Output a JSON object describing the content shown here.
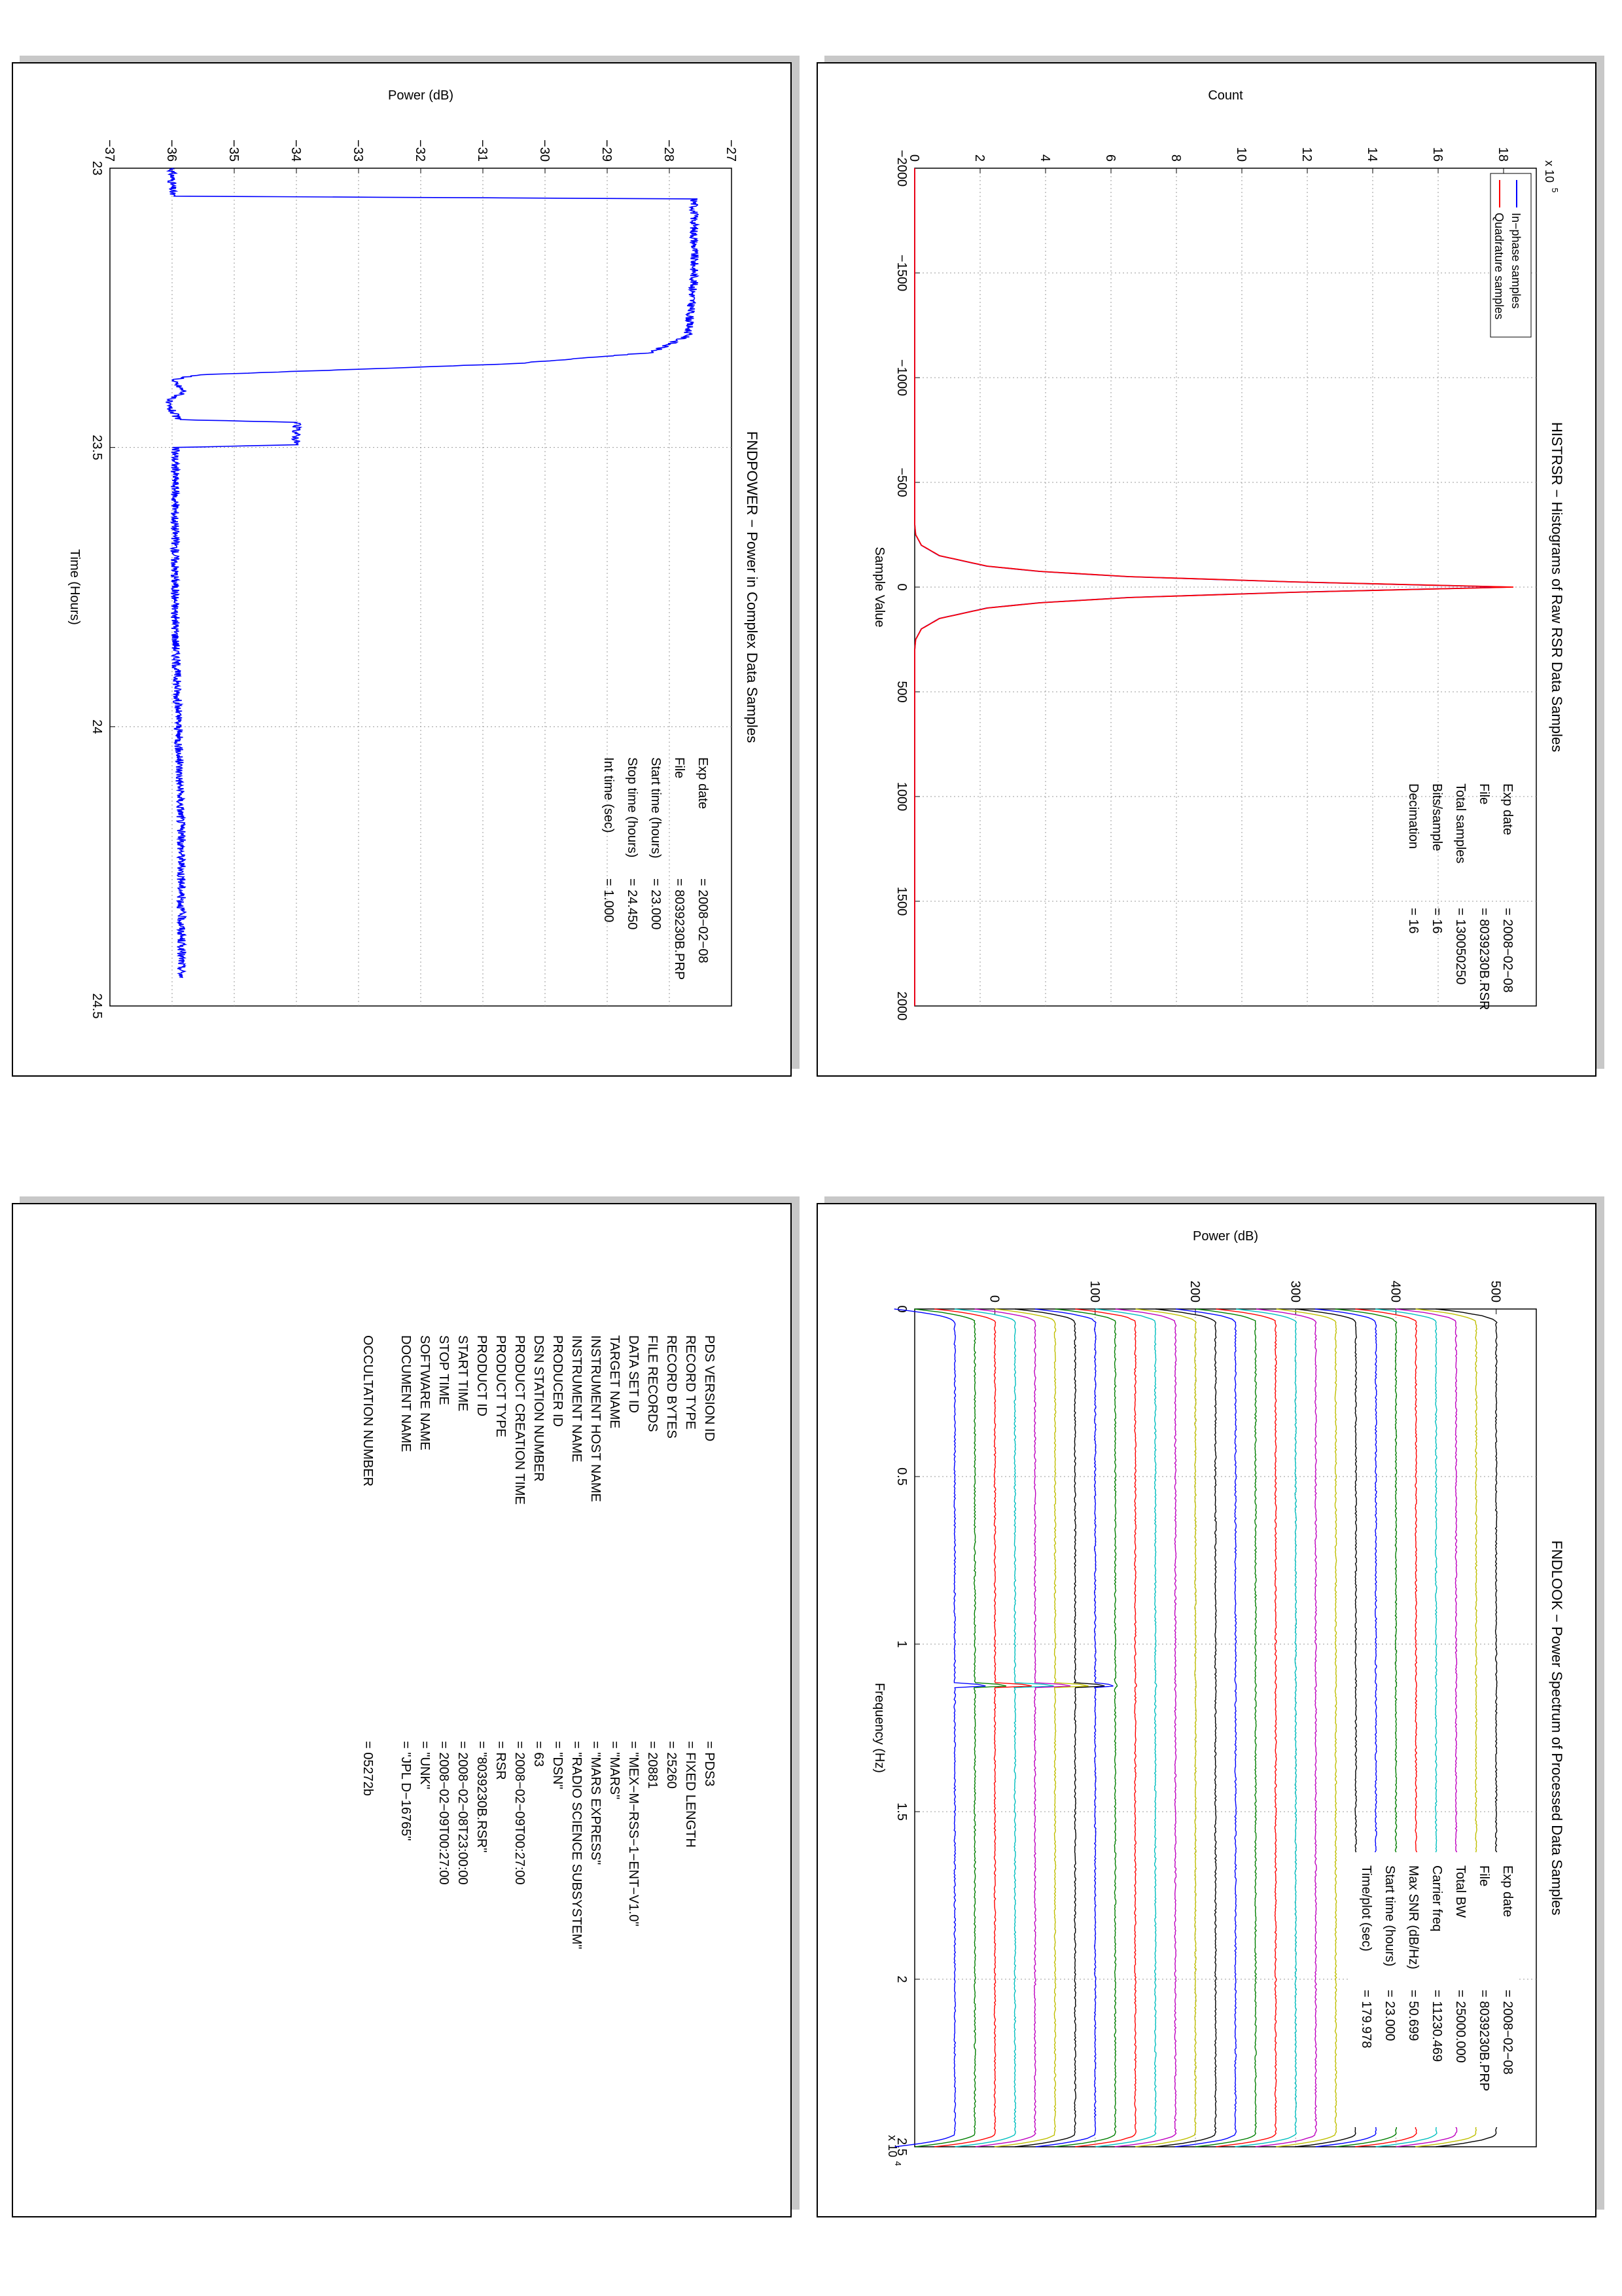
{
  "panels": {
    "histrsr": {
      "title": "HISTRSR − Histograms of Raw RSR Data Samples",
      "xlabel": "Sample Value",
      "ylabel": "Count",
      "yscale_label": "x 10",
      "yscale_exp": "5",
      "info": [
        {
          "k": "Exp date",
          "v": "= 2008−02−08"
        },
        {
          "k": "File",
          "v": "= 8039230B.RSR"
        },
        {
          "k": "Total samples",
          "v": "=  130050250"
        },
        {
          "k": "Bits/sample",
          "v": "=       16"
        },
        {
          "k": "Decimation",
          "v": "=       16"
        }
      ]
    },
    "fndpower": {
      "title": "FNDPOWER − Power in Complex Data Samples",
      "xlabel": "Time (Hours)",
      "ylabel": "Power (dB)",
      "info": [
        {
          "k": "Exp date",
          "v": "= 2008−02−08"
        },
        {
          "k": "File",
          "v": "= 8039230B.PRP"
        },
        {
          "k": "Start time (hours)",
          "v": "= 23.000"
        },
        {
          "k": "Stop time (hours)",
          "v": "= 24.450"
        },
        {
          "k": "Int time (sec)",
          "v": "=      1.000"
        }
      ]
    },
    "fndlook": {
      "title": "FNDLOOK − Power Spectrum of Processed Data Samples",
      "xlabel": "Frequency (Hz)",
      "ylabel": "Power (dB)",
      "xscale_label": "x 10",
      "xscale_exp": "4",
      "info": [
        {
          "k": "Exp date",
          "v": "= 2008−02−08"
        },
        {
          "k": "File",
          "v": "= 8039230B.PRP"
        },
        {
          "k": "Total BW",
          "v": "=     25000.000"
        },
        {
          "k": "Carrier freq",
          "v": "=    11230.469"
        },
        {
          "k": "Max SNR (dB/Hz)",
          "v": "=     50.699"
        },
        {
          "k": "Start time (hours)",
          "v": "=   23.000"
        },
        {
          "k": "Time/plot (sec)",
          "v": "=     179.978"
        }
      ]
    },
    "pds_label": {
      "rows": [
        {
          "k": "PDS VERSION ID",
          "v": "= PDS3"
        },
        {
          "k": "RECORD TYPE",
          "v": "= FIXED LENGTH"
        },
        {
          "k": "RECORD BYTES",
          "v": "= 25260"
        },
        {
          "k": "FILE RECORDS",
          "v": "= 20881"
        },
        {
          "k": "DATA SET ID",
          "v": "= \"MEX−M−RSS−1−ENT−V1.0\""
        },
        {
          "k": "TARGET NAME",
          "v": "= \"MARS\""
        },
        {
          "k": "INSTRUMENT HOST NAME",
          "v": "= \"MARS EXPRESS\""
        },
        {
          "k": "INSTRUMENT NAME",
          "v": "= \"RADIO SCIENCE SUBSYSTEM\""
        },
        {
          "k": "PRODUCER ID",
          "v": "= \"DSN\""
        },
        {
          "k": "DSN STATION NUMBER",
          "v": "= 63"
        },
        {
          "k": "PRODUCT CREATION TIME",
          "v": "= 2008−02−09T00:27:00"
        },
        {
          "k": "PRODUCT TYPE",
          "v": "= RSR"
        },
        {
          "k": "PRODUCT ID",
          "v": "= \"8039230B.RSR\""
        },
        {
          "k": "START TIME",
          "v": "= 2008−02−08T23:00:00"
        },
        {
          "k": "STOP TIME",
          "v": "= 2008−02−09T00:27:00"
        },
        {
          "k": "SOFTWARE NAME",
          "v": "= \"UNK\""
        },
        {
          "k": "DOCUMENT NAME",
          "v": "= \"JPL D−16765\""
        },
        {
          "k": "",
          "v": ""
        },
        {
          "k": "OCCULTATION NUMBER",
          "v": "= 05272b"
        }
      ]
    }
  },
  "chart_data": [
    {
      "type": "line",
      "panel": "histrsr",
      "title": "HISTRSR − Histograms of Raw RSR Data Samples",
      "xlabel": "Sample Value",
      "ylabel": "Count",
      "xlim": [
        -2000,
        2000
      ],
      "ylim": [
        0,
        1900000
      ],
      "xticks": [
        "−2000",
        "−1500",
        "−1000",
        "−500",
        "0",
        "500",
        "1000",
        "1500",
        "2000"
      ],
      "yticks": [
        "0",
        "2",
        "4",
        "6",
        "8",
        "10",
        "12",
        "14",
        "16",
        "18"
      ],
      "grid": true,
      "legend_position": "top-left",
      "series": [
        {
          "name": "In−phase samples",
          "color": "#0000ff",
          "x": [
            -2000,
            -300,
            -250,
            -200,
            -150,
            -100,
            -75,
            -50,
            -25,
            0,
            25,
            50,
            75,
            100,
            150,
            200,
            250,
            300,
            2000
          ],
          "values": [
            0,
            0,
            3000,
            20000,
            75000,
            220000,
            380000,
            650000,
            1150000,
            1820000,
            1150000,
            650000,
            380000,
            220000,
            75000,
            20000,
            3000,
            0,
            0
          ]
        },
        {
          "name": "Quadrature samples",
          "color": "#ff0000",
          "x": [
            -2000,
            -300,
            -250,
            -200,
            -150,
            -100,
            -75,
            -50,
            -25,
            0,
            25,
            50,
            75,
            100,
            150,
            200,
            250,
            300,
            2000
          ],
          "values": [
            0,
            0,
            3100,
            20500,
            76000,
            222000,
            383000,
            655000,
            1155000,
            1830000,
            1155000,
            655000,
            383000,
            222000,
            76000,
            20500,
            3100,
            0,
            0
          ]
        }
      ]
    },
    {
      "type": "line",
      "panel": "fndpower",
      "title": "FNDPOWER − Power in Complex Data Samples",
      "xlabel": "Time (Hours)",
      "ylabel": "Power (dB)",
      "xlim": [
        23,
        24.5
      ],
      "ylim": [
        -37,
        -27
      ],
      "xticks": [
        "23",
        "23.5",
        "24",
        "24.5"
      ],
      "yticks": [
        "−37",
        "−36",
        "−35",
        "−34",
        "−33",
        "−32",
        "−31",
        "−30",
        "−29",
        "−28",
        "−27"
      ],
      "grid": true,
      "series": [
        {
          "color": "#0000ff",
          "x": [
            23.0,
            23.05,
            23.055,
            23.2,
            23.3,
            23.33,
            23.35,
            23.36,
            23.37,
            23.38,
            23.4,
            23.42,
            23.45,
            23.455,
            23.495,
            23.5,
            23.6,
            23.8,
            24.0,
            24.2,
            24.45
          ],
          "values": [
            -36.0,
            -36.0,
            -27.6,
            -27.6,
            -27.7,
            -28.3,
            -30.5,
            -33.0,
            -35.6,
            -36.0,
            -35.8,
            -36.1,
            -35.9,
            -34.0,
            -34.0,
            -35.95,
            -35.95,
            -35.95,
            -35.9,
            -35.85,
            -35.85
          ]
        }
      ]
    },
    {
      "type": "line",
      "panel": "fndlook",
      "title": "FNDLOOK − Power Spectrum of Processed Data Samples",
      "xlabel": "Frequency (Hz)",
      "ylabel": "Power (dB)",
      "xlim": [
        0,
        25000
      ],
      "ylim": [
        -80,
        540
      ],
      "xticks": [
        "0",
        "0.5",
        "1",
        "1.5",
        "2",
        "2.5"
      ],
      "yticks": [
        "0",
        "100",
        "200",
        "300",
        "400",
        "500"
      ],
      "grid": true,
      "series": [
        {
          "color": "#0000ff",
          "offset": -40,
          "peak": 46
        },
        {
          "color": "#007f00",
          "offset": -20,
          "peak": 47
        },
        {
          "color": "#ff0000",
          "offset": 0,
          "peak": 55
        },
        {
          "color": "#00bfbf",
          "offset": 20,
          "peak": 58
        },
        {
          "color": "#bf00bf",
          "offset": 40,
          "peak": 53
        },
        {
          "color": "#bfbf00",
          "offset": 60,
          "peak": 50
        },
        {
          "color": "#000000",
          "offset": 80,
          "peak": 44
        },
        {
          "color": "#0000ff",
          "offset": 100,
          "peak": 27
        },
        {
          "color": "#007f00",
          "offset": 120,
          "peak": 3
        },
        {
          "color": "#ff0000",
          "offset": 140,
          "peak": 2
        },
        {
          "color": "#00bfbf",
          "offset": 160,
          "peak": 2
        },
        {
          "color": "#bf00bf",
          "offset": 180,
          "peak": 1
        },
        {
          "color": "#bfbf00",
          "offset": 200,
          "peak": 1
        },
        {
          "color": "#000000",
          "offset": 220,
          "peak": 1
        },
        {
          "color": "#0000ff",
          "offset": 240,
          "peak": 1
        },
        {
          "color": "#007f00",
          "offset": 260,
          "peak": 1
        },
        {
          "color": "#ff0000",
          "offset": 280,
          "peak": 1
        },
        {
          "color": "#00bfbf",
          "offset": 300,
          "peak": 1
        },
        {
          "color": "#bf00bf",
          "offset": 320,
          "peak": 1
        },
        {
          "color": "#bfbf00",
          "offset": 340,
          "peak": 1
        },
        {
          "color": "#000000",
          "offset": 360,
          "peak": 1
        },
        {
          "color": "#0000ff",
          "offset": 380,
          "peak": 1
        },
        {
          "color": "#007f00",
          "offset": 400,
          "peak": 1
        },
        {
          "color": "#ff0000",
          "offset": 420,
          "peak": 1
        },
        {
          "color": "#00bfbf",
          "offset": 440,
          "peak": 1
        },
        {
          "color": "#bf00bf",
          "offset": 460,
          "peak": 1
        },
        {
          "color": "#bfbf00",
          "offset": 480,
          "peak": 1
        },
        {
          "color": "#000000",
          "offset": 500,
          "peak": 1
        }
      ]
    }
  ]
}
